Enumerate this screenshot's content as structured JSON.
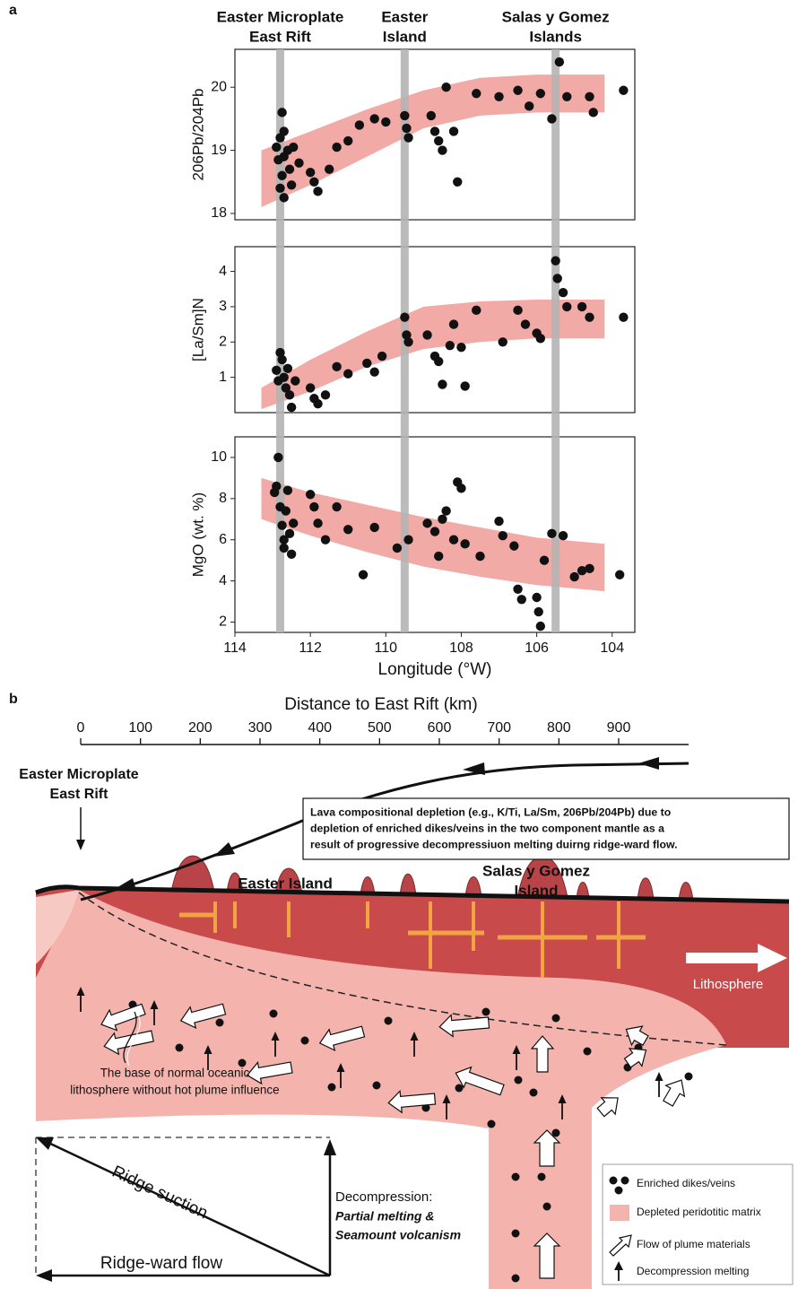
{
  "panel_labels": [
    "a",
    "b"
  ],
  "locations": [
    {
      "label": [
        "Easter Microplate",
        "East Rift"
      ],
      "lon": 112.8
    },
    {
      "label": [
        "Easter",
        "Island"
      ],
      "lon": 109.5
    },
    {
      "label": [
        "Salas y Gomez",
        "Islands"
      ],
      "lon": 105.5
    }
  ],
  "chart_data": [
    {
      "type": "scatter",
      "ylabel": "206Pb/204Pb",
      "color": "#111111",
      "xlim": [
        114,
        103.4
      ],
      "ylim": [
        17.9,
        20.6
      ],
      "yticks": [
        18,
        19,
        20
      ],
      "x": [
        112.9,
        112.85,
        112.8,
        112.75,
        112.7,
        112.7,
        112.75,
        112.8,
        112.7,
        112.6,
        112.55,
        112.5,
        112.45,
        112.3,
        112.0,
        111.9,
        111.8,
        111.5,
        111.3,
        111.0,
        110.7,
        110.3,
        110.0,
        109.5,
        109.45,
        109.4,
        108.8,
        108.7,
        108.6,
        108.5,
        108.4,
        108.2,
        108.1,
        107.6,
        107.0,
        106.5,
        106.2,
        105.9,
        105.6,
        105.4,
        105.2,
        104.6,
        104.5,
        103.7
      ],
      "values": [
        19.05,
        18.85,
        19.2,
        19.6,
        19.3,
        18.9,
        18.6,
        18.4,
        18.25,
        19.0,
        18.7,
        18.45,
        19.05,
        18.8,
        18.65,
        18.5,
        18.35,
        18.7,
        19.05,
        19.15,
        19.4,
        19.5,
        19.45,
        19.55,
        19.35,
        19.2,
        19.55,
        19.3,
        19.15,
        19.0,
        20.0,
        19.3,
        18.5,
        19.9,
        19.85,
        19.95,
        19.7,
        19.9,
        19.5,
        20.4,
        19.85,
        19.85,
        19.6,
        19.95
      ],
      "band": {
        "color": "#f2aaa6",
        "x": [
          113.3,
          112,
          110.5,
          109,
          107.5,
          106,
          104.2
        ],
        "lower": [
          18.1,
          18.45,
          18.9,
          19.35,
          19.55,
          19.6,
          19.6
        ],
        "upper": [
          19.0,
          19.3,
          19.65,
          19.95,
          20.15,
          20.2,
          20.2
        ]
      }
    },
    {
      "type": "scatter",
      "ylabel": "[La/Sm]N",
      "color": "#111111",
      "xlim": [
        114,
        103.4
      ],
      "ylim": [
        0,
        4.7
      ],
      "yticks": [
        1,
        2,
        3,
        4
      ],
      "x": [
        112.9,
        112.85,
        112.8,
        112.75,
        112.7,
        112.65,
        112.6,
        112.55,
        112.5,
        112.4,
        112.0,
        111.9,
        111.8,
        111.6,
        111.3,
        111.0,
        110.5,
        110.3,
        110.1,
        109.5,
        109.45,
        109.4,
        108.9,
        108.7,
        108.6,
        108.5,
        108.3,
        108.2,
        108.0,
        107.9,
        107.6,
        106.9,
        106.5,
        106.3,
        106.0,
        105.9,
        105.5,
        105.45,
        105.3,
        105.2,
        104.8,
        104.6,
        103.7
      ],
      "values": [
        1.2,
        0.9,
        1.7,
        1.5,
        1.0,
        0.7,
        1.25,
        0.5,
        0.15,
        0.9,
        0.7,
        0.4,
        0.25,
        0.5,
        1.3,
        1.1,
        1.4,
        1.15,
        1.6,
        2.7,
        2.2,
        2.0,
        2.2,
        1.6,
        1.45,
        0.8,
        1.9,
        2.5,
        1.85,
        0.75,
        2.9,
        2.0,
        2.9,
        2.5,
        2.25,
        2.1,
        4.3,
        3.8,
        3.4,
        3.0,
        3.0,
        2.7,
        2.7
      ],
      "band": {
        "color": "#f2aaa6",
        "x": [
          113.3,
          112,
          110.5,
          109,
          107.5,
          106,
          104.2
        ],
        "lower": [
          0.1,
          0.6,
          1.3,
          1.8,
          2.0,
          2.1,
          2.1
        ],
        "upper": [
          0.7,
          1.5,
          2.3,
          3.0,
          3.15,
          3.2,
          3.2
        ]
      }
    },
    {
      "type": "scatter",
      "ylabel": "MgO (wt. %)",
      "xlabel": "Longitude (°W)",
      "color": "#111111",
      "xlim": [
        114,
        103.4
      ],
      "ylim": [
        1.5,
        11
      ],
      "yticks": [
        2,
        4,
        6,
        8,
        10
      ],
      "xticks": [
        114,
        112,
        110,
        108,
        106,
        104
      ],
      "x": [
        112.95,
        112.9,
        112.85,
        112.8,
        112.75,
        112.7,
        112.7,
        112.65,
        112.6,
        112.55,
        112.5,
        112.45,
        112.0,
        111.9,
        111.8,
        111.6,
        111.3,
        111.0,
        110.6,
        110.3,
        109.7,
        109.4,
        108.9,
        108.7,
        108.6,
        108.5,
        108.4,
        108.2,
        108.1,
        108.0,
        107.9,
        107.5,
        107.0,
        106.9,
        106.6,
        106.5,
        106.4,
        106.0,
        105.95,
        105.9,
        105.8,
        105.6,
        105.3,
        105.0,
        104.8,
        104.6,
        103.8
      ],
      "values": [
        8.3,
        8.6,
        10.0,
        7.6,
        6.7,
        6.0,
        5.6,
        7.4,
        8.4,
        6.3,
        5.3,
        6.8,
        8.2,
        7.6,
        6.8,
        6.0,
        7.6,
        6.5,
        4.3,
        6.6,
        5.6,
        6.0,
        6.8,
        6.4,
        5.2,
        7.0,
        7.4,
        6.0,
        8.8,
        8.5,
        5.8,
        5.2,
        6.9,
        6.2,
        5.7,
        3.6,
        3.1,
        3.2,
        2.5,
        1.8,
        5.0,
        6.3,
        6.2,
        4.2,
        4.5,
        4.6,
        4.3
      ],
      "band": {
        "color": "#f2aaa6",
        "x": [
          113.3,
          112,
          110.5,
          109,
          107.5,
          106,
          104.2
        ],
        "lower": [
          7.0,
          6.2,
          5.4,
          4.7,
          4.2,
          3.8,
          3.5
        ],
        "upper": [
          9.0,
          8.3,
          7.7,
          7.1,
          6.6,
          6.1,
          5.8
        ]
      }
    }
  ],
  "diagram": {
    "distance_axis": {
      "title": "Distance to East Rift (km)",
      "xlim": [
        0,
        1017
      ],
      "xticks": [
        0,
        100,
        200,
        300,
        400,
        500,
        600,
        700,
        800,
        900
      ]
    },
    "ridge_label": [
      "Easter Microplate",
      "East Rift"
    ],
    "note": [
      "Lava compositional depletion (e.g., K/Ti, La/Sm, 206Pb/204Pb) due to",
      "depletion of enriched dikes/veins in the two component mantle as a",
      "result of progressive decompressiuon melting duirng ridge-ward flow."
    ],
    "easter_island": "Easter Island",
    "salas_island": [
      "Salas y Gomez",
      "Island"
    ],
    "lithosphere": "Lithosphere",
    "base_note": [
      "The base of normal oceanic",
      "lithosphere without hot plume influence"
    ],
    "vector": {
      "suction": "Ridge suction",
      "flow": "Ridge-ward flow",
      "decompression": "Decompression:",
      "melting": [
        "Partial melting &",
        "Seamount volcanism"
      ]
    },
    "legend": [
      "Enriched dikes/veins",
      "Depleted peridotitic matrix",
      "Flow of plume materials",
      "Decompression melting"
    ]
  }
}
